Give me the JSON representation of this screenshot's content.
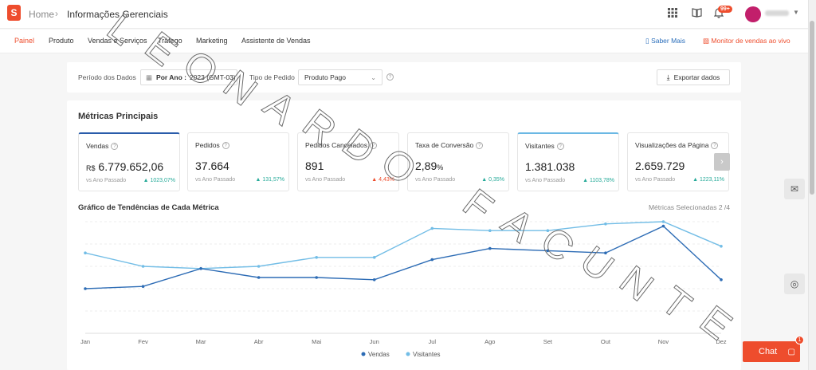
{
  "header": {
    "logo_letter": "S",
    "breadcrumb_home": "Home",
    "breadcrumb_current": "Informações Gerenciais",
    "notification_badge": "99+",
    "icons": [
      "apps-grid-icon",
      "book-icon",
      "bell-icon"
    ]
  },
  "nav": {
    "items": [
      {
        "label": "Painel",
        "active": true
      },
      {
        "label": "Produto",
        "active": false
      },
      {
        "label": "Vendas e Serviços",
        "active": false
      },
      {
        "label": "Tráfego",
        "active": false
      },
      {
        "label": "Marketing",
        "active": false
      },
      {
        "label": "Assistente de Vendas",
        "active": false
      }
    ],
    "learn_more": "Saber Mais",
    "live_monitor": "Monitor de vendas ao vivo"
  },
  "filters": {
    "period_label": "Período dos Dados",
    "period_value_bold": "Por Ano :",
    "period_value": "2023 (GMT-03)",
    "order_type_label": "Tipo de Pedido",
    "order_type_value": "Produto Pago",
    "export_label": "Exportar dados"
  },
  "metrics_section": {
    "title": "Métricas Principais",
    "compare_label": "vs Ano Passado",
    "cards": [
      {
        "name": "Vendas",
        "prefix": "R$",
        "value": "6.779.652,06",
        "suffix": "",
        "change": "1023,07%",
        "direction": "up",
        "selected": "dark"
      },
      {
        "name": "Pedidos",
        "prefix": "",
        "value": "37.664",
        "suffix": "",
        "change": "131,57%",
        "direction": "up",
        "selected": ""
      },
      {
        "name": "Pedidos Cancelados",
        "prefix": "",
        "value": "891",
        "suffix": "",
        "change": "4,43%",
        "direction": "down",
        "selected": ""
      },
      {
        "name": "Taxa de Conversão",
        "prefix": "",
        "value": "2,89",
        "suffix": "%",
        "change": "0,35%",
        "direction": "up",
        "selected": ""
      },
      {
        "name": "Visitantes",
        "prefix": "",
        "value": "1.381.038",
        "suffix": "",
        "change": "1103,78%",
        "direction": "up",
        "selected": "light"
      },
      {
        "name": "Visualizações da Página",
        "prefix": "",
        "value": "2.659.729",
        "suffix": "",
        "change": "1223,11%",
        "direction": "up",
        "selected": ""
      }
    ]
  },
  "trend": {
    "title": "Gráfico de Tendências de Cada Métrica",
    "selected_metrics": "Métricas Selecionadas 2 /4"
  },
  "chart_data": {
    "type": "line",
    "title": "Gráfico de Tendências de Cada Métrica",
    "categories": [
      "Jan",
      "Fev",
      "Mar",
      "Abr",
      "Mai",
      "Jun",
      "Jul",
      "Ago",
      "Set",
      "Out",
      "Nov",
      "Dez"
    ],
    "series": [
      {
        "name": "Vendas",
        "color": "#2d6cb5",
        "values": [
          0.2,
          0.21,
          0.29,
          0.25,
          0.25,
          0.24,
          0.33,
          0.38,
          0.37,
          0.36,
          0.48,
          0.24
        ]
      },
      {
        "name": "Visitantes",
        "color": "#72bde6",
        "values": [
          0.36,
          0.3,
          0.29,
          0.3,
          0.34,
          0.34,
          0.47,
          0.46,
          0.46,
          0.49,
          0.5,
          0.39
        ]
      }
    ],
    "grid": true,
    "legend": "bottom-center",
    "ylim": [
      0,
      0.5
    ]
  },
  "floating": {
    "chat_label": "Chat",
    "chat_badge": "1"
  },
  "watermark": {
    "text": "LEONARDO FACUNTE"
  }
}
